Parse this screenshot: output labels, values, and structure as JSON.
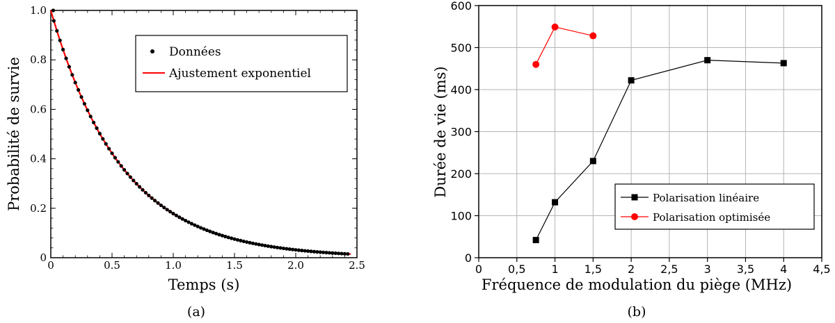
{
  "chart_data": [
    {
      "type": "scatter",
      "caption": "(a)",
      "xlabel": "Temps (s)",
      "ylabel": "Probabilité de survie",
      "xlim": [
        0,
        2.5
      ],
      "ylim": [
        0,
        1.0
      ],
      "xticks": [
        0,
        0.5,
        1.0,
        1.5,
        2.0,
        2.5
      ],
      "xtick_labels": [
        "0",
        "0.5",
        "1.0",
        "1.5",
        "2.0",
        "2.5"
      ],
      "yticks": [
        0,
        0.2,
        0.4,
        0.6,
        0.8,
        1.0
      ],
      "ytick_labels": [
        "0",
        "0.2",
        "0.4",
        "0.6",
        "0.8",
        "1.0"
      ],
      "grid": false,
      "legend_position": "top-right",
      "series": [
        {
          "name": "Données",
          "kind": "points",
          "color": "#000000",
          "decay_time_s": 0.58,
          "t_step_s": 0.025,
          "t_start_s": 0.025,
          "t_end_s": 2.425
        },
        {
          "name": "Ajustement exponentiel",
          "kind": "line",
          "color": "#ff0000",
          "decay_time_s": 0.58
        }
      ]
    },
    {
      "type": "line",
      "caption": "(b)",
      "xlabel": "Fréquence de modulation du piège (MHz)",
      "ylabel": "Durée de vie (ms)",
      "xlim": [
        0,
        4.5
      ],
      "ylim": [
        0,
        600
      ],
      "xticks": [
        0,
        0.5,
        1,
        1.5,
        2,
        2.5,
        3,
        3.5,
        4,
        4.5
      ],
      "xtick_labels": [
        "0",
        "0,5",
        "1",
        "1,5",
        "2",
        "2,5",
        "3",
        "3,5",
        "4",
        "4,5"
      ],
      "yticks": [
        0,
        100,
        200,
        300,
        400,
        500,
        600
      ],
      "ytick_labels": [
        "0",
        "100",
        "200",
        "300",
        "400",
        "500",
        "600"
      ],
      "grid": true,
      "legend_position": "bottom-right",
      "series": [
        {
          "name": "Polarisation linéaire",
          "color": "#000000",
          "marker": "square",
          "x": [
            0.75,
            1,
            1.5,
            2,
            3,
            4
          ],
          "y": [
            42,
            132,
            230,
            422,
            470,
            463
          ]
        },
        {
          "name": "Polarisation optimisée",
          "color": "#ff0000",
          "marker": "circle",
          "x": [
            0.75,
            1,
            1.5
          ],
          "y": [
            460,
            549,
            528
          ]
        }
      ]
    }
  ]
}
